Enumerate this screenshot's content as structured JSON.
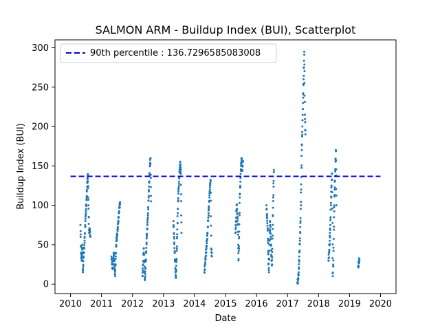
{
  "chart_data": {
    "type": "scatter",
    "title": "SALMON ARM - Buildup Index (BUI), Scatterplot",
    "xlabel": "Date",
    "ylabel": "Buildup Index (BUI)",
    "xlim": [
      2009.5,
      2020.5
    ],
    "ylim": [
      -12,
      310
    ],
    "xticks": [
      2010,
      2011,
      2012,
      2013,
      2014,
      2015,
      2016,
      2017,
      2018,
      2019,
      2020
    ],
    "yticks": [
      0,
      50,
      100,
      150,
      200,
      250,
      300
    ],
    "point_color": "#1f77b4",
    "reference_line": {
      "label": "90th percentile : 136.7296585083008",
      "value": 136.7296585083008,
      "x_range": [
        2010,
        2020
      ],
      "color": "#0000cc",
      "style": "dashed"
    },
    "legend_position": "top-left",
    "seasons": [
      {
        "year": 2010,
        "points": [
          [
            2010.32,
            75
          ],
          [
            2010.34,
            40
          ],
          [
            2010.36,
            30
          ],
          [
            2010.38,
            50
          ],
          [
            2010.4,
            15
          ],
          [
            2010.42,
            35
          ],
          [
            2010.44,
            45
          ],
          [
            2010.46,
            60
          ],
          [
            2010.48,
            80
          ],
          [
            2010.5,
            95
          ],
          [
            2010.52,
            110
          ],
          [
            2010.54,
            130
          ],
          [
            2010.56,
            138
          ],
          [
            2010.58,
            100
          ],
          [
            2010.6,
            65
          ],
          [
            2010.62,
            70
          ],
          [
            2010.64,
            60
          ]
        ]
      },
      {
        "year": 2011,
        "points": [
          [
            2011.32,
            35
          ],
          [
            2011.34,
            25
          ],
          [
            2011.36,
            20
          ],
          [
            2011.38,
            30
          ],
          [
            2011.4,
            40
          ],
          [
            2011.42,
            25
          ],
          [
            2011.44,
            10
          ],
          [
            2011.46,
            35
          ],
          [
            2011.48,
            55
          ],
          [
            2011.5,
            60
          ],
          [
            2011.52,
            70
          ],
          [
            2011.54,
            80
          ],
          [
            2011.56,
            90
          ],
          [
            2011.58,
            98
          ],
          [
            2011.6,
            104
          ]
        ]
      },
      {
        "year": 2012,
        "points": [
          [
            2012.32,
            10
          ],
          [
            2012.34,
            25
          ],
          [
            2012.36,
            45
          ],
          [
            2012.38,
            30
          ],
          [
            2012.4,
            5
          ],
          [
            2012.42,
            20
          ],
          [
            2012.44,
            40
          ],
          [
            2012.46,
            60
          ],
          [
            2012.48,
            75
          ],
          [
            2012.5,
            90
          ],
          [
            2012.52,
            110
          ],
          [
            2012.54,
            130
          ],
          [
            2012.56,
            150
          ],
          [
            2012.58,
            160
          ],
          [
            2012.6,
            105
          ]
        ]
      },
      {
        "year": 2013,
        "points": [
          [
            2013.32,
            80
          ],
          [
            2013.34,
            60
          ],
          [
            2013.36,
            40
          ],
          [
            2013.38,
            20
          ],
          [
            2013.4,
            8
          ],
          [
            2013.42,
            30
          ],
          [
            2013.44,
            60
          ],
          [
            2013.46,
            90
          ],
          [
            2013.48,
            115
          ],
          [
            2013.5,
            130
          ],
          [
            2013.52,
            145
          ],
          [
            2013.54,
            155
          ],
          [
            2013.56,
            140
          ],
          [
            2013.58,
            65
          ]
        ]
      },
      {
        "year": 2014,
        "points": [
          [
            2014.32,
            15
          ],
          [
            2014.34,
            25
          ],
          [
            2014.36,
            35
          ],
          [
            2014.38,
            45
          ],
          [
            2014.4,
            55
          ],
          [
            2014.42,
            65
          ],
          [
            2014.44,
            80
          ],
          [
            2014.46,
            95
          ],
          [
            2014.48,
            110
          ],
          [
            2014.5,
            125
          ],
          [
            2014.52,
            132
          ],
          [
            2014.54,
            45
          ],
          [
            2014.56,
            35
          ]
        ]
      },
      {
        "year": 2015,
        "points": [
          [
            2015.32,
            65
          ],
          [
            2015.34,
            80
          ],
          [
            2015.36,
            100
          ],
          [
            2015.38,
            90
          ],
          [
            2015.4,
            75
          ],
          [
            2015.42,
            30
          ],
          [
            2015.44,
            60
          ],
          [
            2015.46,
            110
          ],
          [
            2015.48,
            130
          ],
          [
            2015.5,
            150
          ],
          [
            2015.52,
            160
          ],
          [
            2015.54,
            145
          ],
          [
            2015.56,
            155
          ]
        ]
      },
      {
        "year": 2016,
        "points": [
          [
            2016.32,
            100
          ],
          [
            2016.34,
            85
          ],
          [
            2016.36,
            70
          ],
          [
            2016.38,
            40
          ],
          [
            2016.4,
            15
          ],
          [
            2016.42,
            55
          ],
          [
            2016.44,
            80
          ],
          [
            2016.46,
            60
          ],
          [
            2016.48,
            35
          ],
          [
            2016.5,
            25
          ],
          [
            2016.52,
            70
          ],
          [
            2016.54,
            110
          ],
          [
            2016.56,
            145
          ]
        ]
      },
      {
        "year": 2017,
        "points": [
          [
            2017.32,
            2
          ],
          [
            2017.34,
            5
          ],
          [
            2017.36,
            15
          ],
          [
            2017.38,
            35
          ],
          [
            2017.4,
            55
          ],
          [
            2017.42,
            80
          ],
          [
            2017.44,
            120
          ],
          [
            2017.46,
            170
          ],
          [
            2017.48,
            200
          ],
          [
            2017.5,
            230
          ],
          [
            2017.52,
            260
          ],
          [
            2017.54,
            295
          ],
          [
            2017.56,
            215
          ],
          [
            2017.58,
            190
          ]
        ]
      },
      {
        "year": 2018,
        "points": [
          [
            2018.32,
            30
          ],
          [
            2018.34,
            40
          ],
          [
            2018.36,
            55
          ],
          [
            2018.38,
            75
          ],
          [
            2018.4,
            100
          ],
          [
            2018.42,
            125
          ],
          [
            2018.44,
            140
          ],
          [
            2018.46,
            10
          ],
          [
            2018.48,
            30
          ],
          [
            2018.5,
            85
          ],
          [
            2018.52,
            120
          ],
          [
            2018.54,
            145
          ],
          [
            2018.56,
            170
          ],
          [
            2018.58,
            100
          ]
        ]
      },
      {
        "year": 2019,
        "points": [
          [
            2019.28,
            22
          ],
          [
            2019.3,
            28
          ],
          [
            2019.32,
            32
          ]
        ]
      }
    ]
  }
}
